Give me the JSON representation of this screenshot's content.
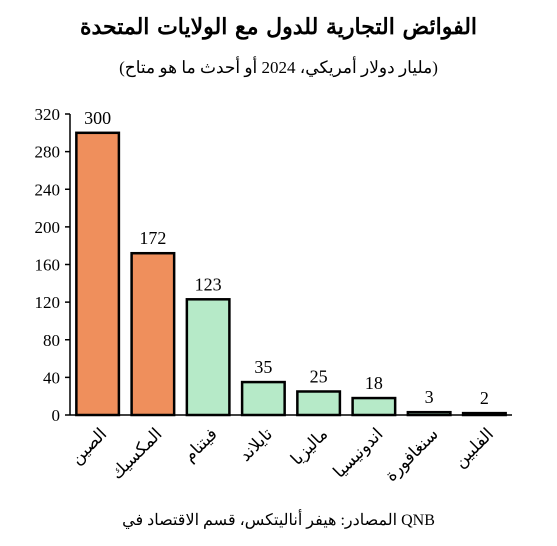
{
  "chart_data": {
    "type": "bar",
    "title": "الفوائض التجارية للدول مع الولايات المتحدة",
    "subtitle": "(مليار دولار أمريكي، 2024 أو أحدث ما هو متاح)",
    "categories": [
      "الصين",
      "المكسيك",
      "فيتنام",
      "تايلاند",
      "ماليزيا",
      "اندونيسيا",
      "سنغافورة",
      "الفلبين"
    ],
    "values": [
      300,
      172,
      123,
      35,
      25,
      18,
      3,
      2
    ],
    "bar_colors": [
      "#ef8f5c",
      "#ef8f5c",
      "#b6eac8",
      "#b6eac8",
      "#b6eac8",
      "#b6eac8",
      "#b6eac8",
      "#b6eac8"
    ],
    "ylim": [
      0,
      320
    ],
    "yticks": [
      0,
      40,
      80,
      120,
      160,
      200,
      240,
      280,
      320
    ],
    "xlabel": "",
    "ylabel": "",
    "grid": false,
    "source": "المصادر: هيفر أناليتكس، قسم الاقتصاد في QNB"
  }
}
